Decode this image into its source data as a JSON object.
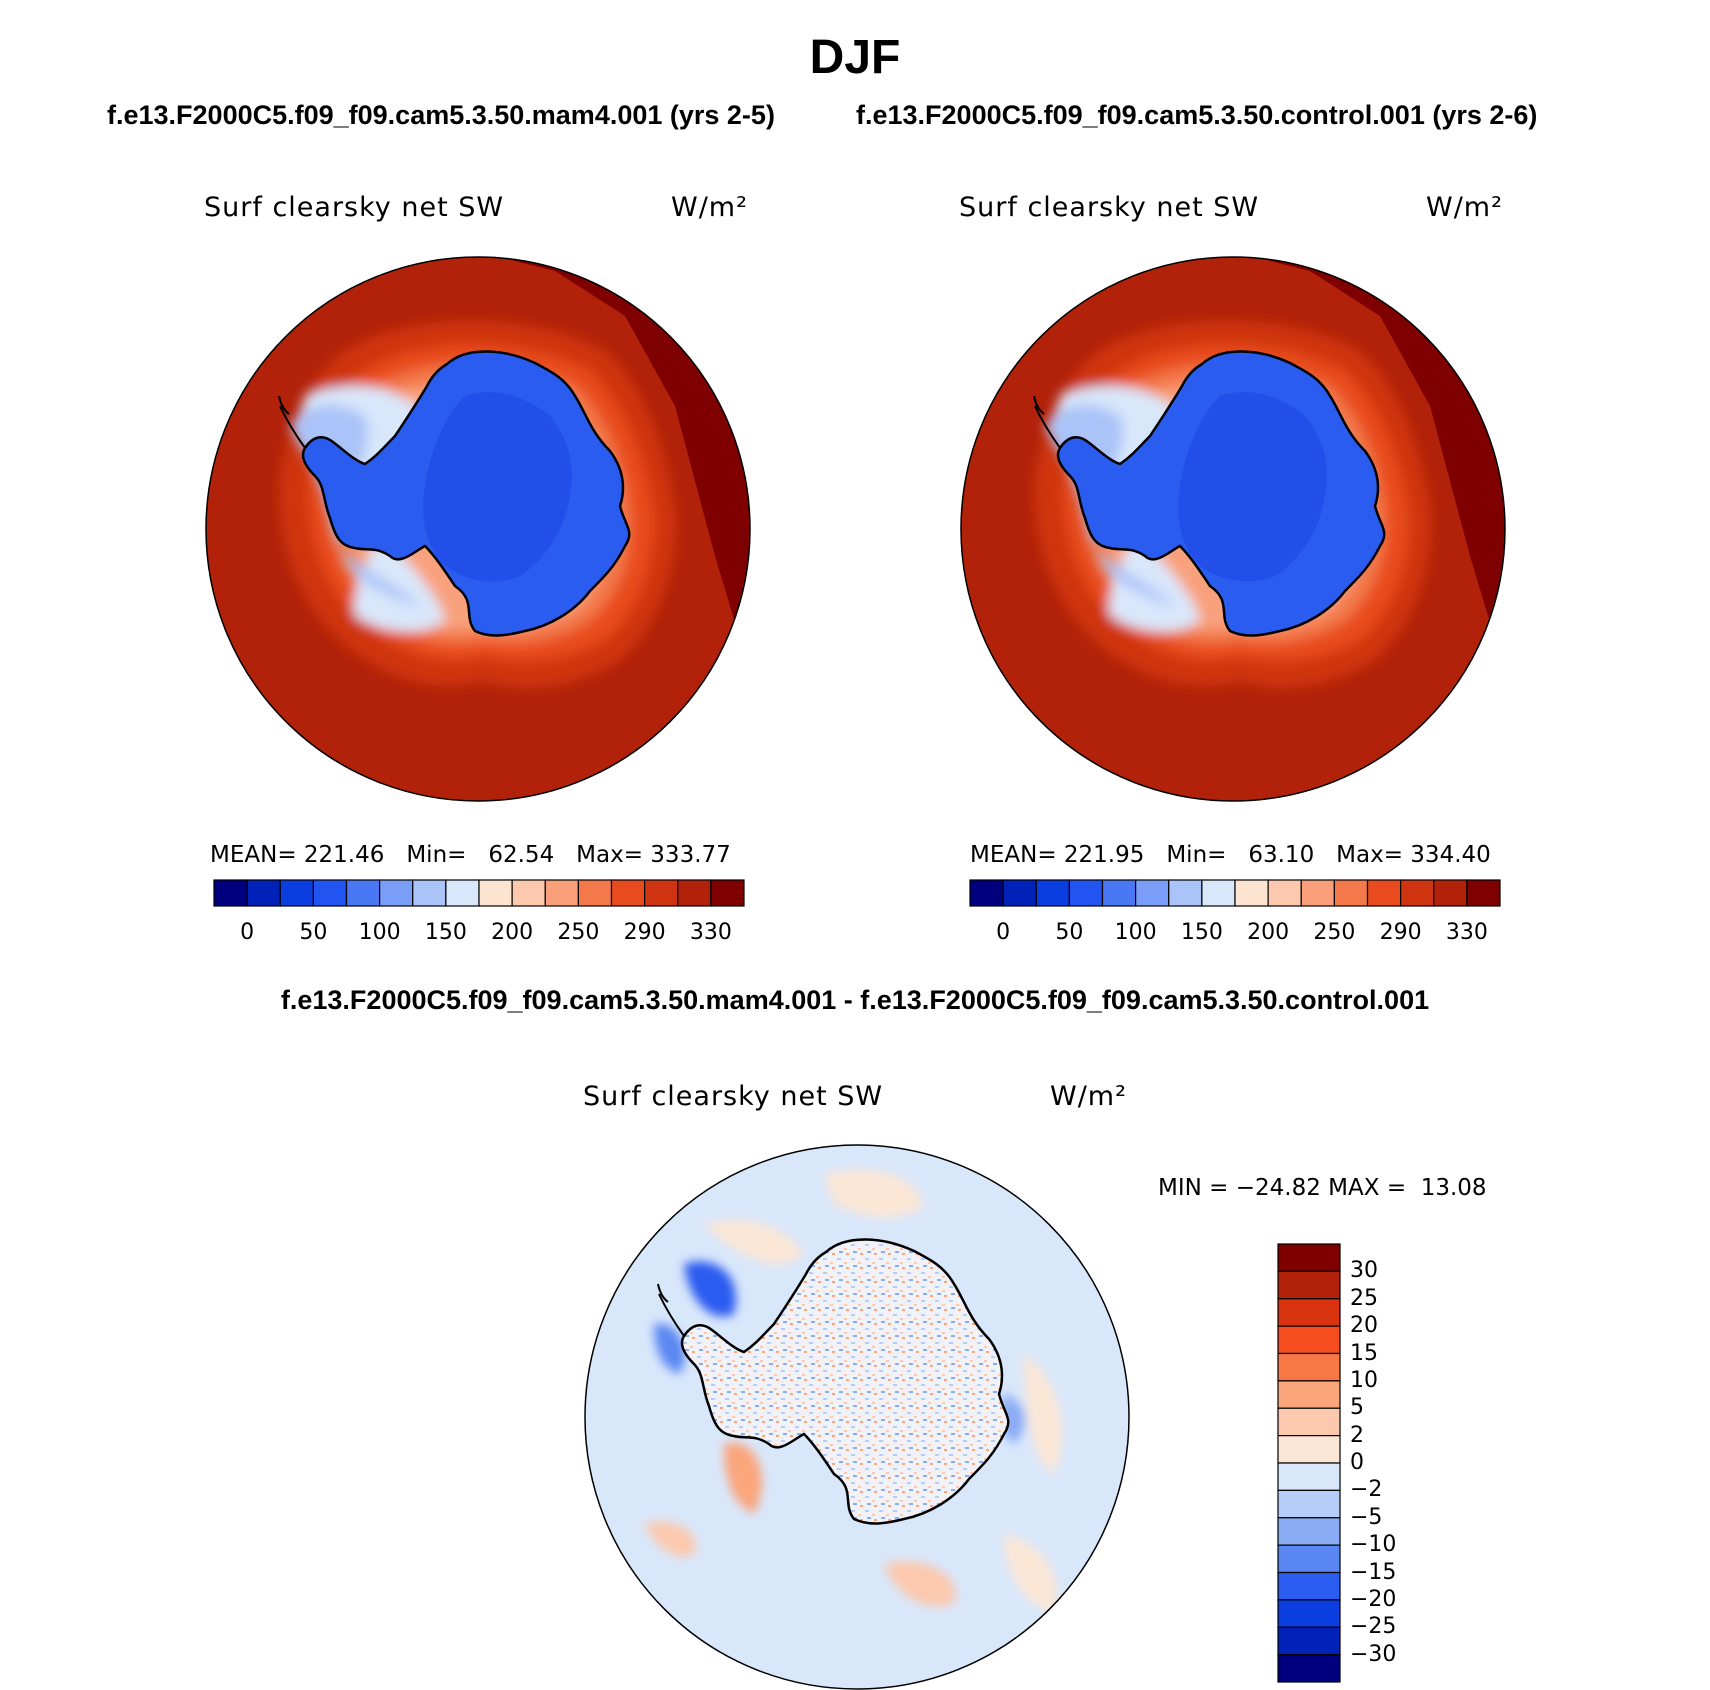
{
  "season": "DJF",
  "panels": [
    {
      "run_title": "f.e13.F2000C5.f09_f09.cam5.3.50.mam4.001 (yrs 2-5)",
      "plot_title": "Surf clearsky net SW",
      "units": "W/m²",
      "mean_label": "MEAN=",
      "mean": "221.46",
      "min_label": "Min=",
      "min": "62.54",
      "max_label": "Max=",
      "max": "333.77"
    },
    {
      "run_title": "f.e13.F2000C5.f09_f09.cam5.3.50.control.001 (yrs 2-6)",
      "plot_title": "Surf clearsky net SW",
      "units": "W/m²",
      "mean_label": "MEAN=",
      "mean": "221.95",
      "min_label": "Min=",
      "min": "63.10",
      "max_label": "Max=",
      "max": "334.40"
    }
  ],
  "difference": {
    "title": "f.e13.F2000C5.f09_f09.cam5.3.50.mam4.001 - f.e13.F2000C5.f09_f09.cam5.3.50.control.001",
    "plot_title": "Surf clearsky net SW",
    "units": "W/m²",
    "min_label": "MIN =",
    "min": "−24.82",
    "max_label": "MAX =",
    "max": "13.08"
  },
  "colorbar_main": {
    "colors": [
      "#00007f",
      "#0022b8",
      "#0a3ee0",
      "#2154f0",
      "#4a78f5",
      "#7a9ef7",
      "#aac3f8",
      "#d9e7fb",
      "#fce4d0",
      "#fcc9ae",
      "#f9a07b",
      "#f3784a",
      "#e84c1e",
      "#cf3410",
      "#b2220a",
      "#7f0000"
    ],
    "labels": [
      "0",
      "50",
      "100",
      "150",
      "200",
      "250",
      "290",
      "330"
    ]
  },
  "colorbar_diff": {
    "colors": [
      "#7f0000",
      "#b2220a",
      "#d8330e",
      "#f54d1e",
      "#f77845",
      "#fba57c",
      "#fcc9ae",
      "#fce7d6",
      "#d9e7fb",
      "#b7cdf9",
      "#8aacf5",
      "#5a87f2",
      "#2b5cf0",
      "#0a3ee0",
      "#0022b8",
      "#00007f"
    ],
    "labels": [
      "30",
      "25",
      "20",
      "15",
      "10",
      "5",
      "2",
      "0",
      "−2",
      "−5",
      "−10",
      "−15",
      "−20",
      "−25",
      "−30"
    ]
  },
  "chart_data": [
    {
      "type": "heatmap",
      "title": "Surf clearsky net SW",
      "units": "W/m²",
      "projection": "south polar stereographic",
      "levels": [
        0,
        50,
        100,
        150,
        200,
        250,
        290,
        330
      ],
      "mean": 221.46,
      "min": 62.54,
      "max": 333.77
    },
    {
      "type": "heatmap",
      "title": "Surf clearsky net SW",
      "units": "W/m²",
      "projection": "south polar stereographic",
      "levels": [
        0,
        50,
        100,
        150,
        200,
        250,
        290,
        330
      ],
      "mean": 221.95,
      "min": 63.1,
      "max": 334.4
    },
    {
      "type": "heatmap",
      "title": "Surf clearsky net SW",
      "units": "W/m²",
      "projection": "south polar stereographic",
      "levels": [
        -30,
        -25,
        -20,
        -15,
        -10,
        -5,
        -2,
        0,
        2,
        5,
        10,
        15,
        20,
        25,
        30
      ],
      "min": -24.82,
      "max": 13.08
    }
  ]
}
